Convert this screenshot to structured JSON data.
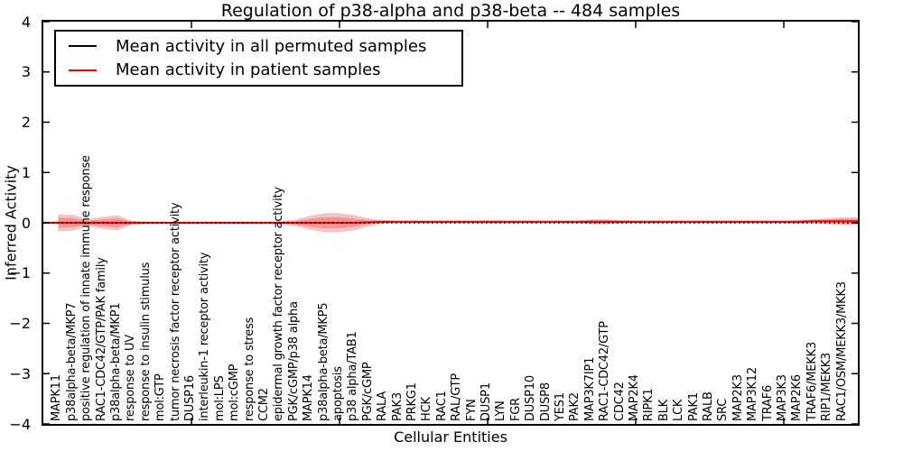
{
  "title": "Regulation of p38-alpha and p38-beta -- 484 samples",
  "axes": {
    "ylabel": "Inferred Activity",
    "xlabel": "Cellular Entities",
    "yticks": [
      "4",
      "3",
      "2",
      "1",
      "0",
      "−1",
      "−2",
      "−3",
      "−4"
    ],
    "ylim": [
      -4,
      4
    ],
    "top_axis_tick_positions": [
      10,
      20,
      30,
      40,
      50
    ]
  },
  "legend": {
    "entries": [
      {
        "label": "Mean activity in all permuted samples",
        "color": "#000000"
      },
      {
        "label": "Mean activity in patient samples",
        "color": "#ff0000"
      }
    ]
  },
  "colors": {
    "permuted_line": "#000000",
    "patient_line": "#ff0000",
    "band_fill": "#dd3a3a",
    "background": "#ffffff"
  },
  "chart_data": {
    "type": "line",
    "title": "Regulation of p38-alpha and p38-beta -- 484 samples",
    "xlabel": "Cellular Entities",
    "ylabel": "Inferred Activity",
    "ylim": [
      -4,
      4
    ],
    "grid": false,
    "legend_position": "upper left",
    "categories": [
      "MAPK11",
      "p38alpha-beta/MKP7",
      "positive regulation of innate immune response",
      "RAC1-CDC42/GTP/PAK family",
      "p38alpha-beta/MKP1",
      "response to UV",
      "response to insulin stimulus",
      "mol:GTP",
      "tumor necrosis factor receptor activity",
      "DUSP16",
      "interleukin-1 receptor activity",
      "mol:LPS",
      "mol:cGMP",
      "response to stress",
      "CCM2",
      "epidermal growth factor receptor activity",
      "PGK/cGMP/p38 alpha",
      "MAPK14",
      "p38alpha-beta/MKP5",
      "apoptosis",
      "p38 alpha/TAB1",
      "PGK/cGMP",
      "RALA",
      "PAK3",
      "PRKG1",
      "HCK",
      "RAC1",
      "RAL/GTP",
      "FYN",
      "DUSP1",
      "LYN",
      "FGR",
      "DUSP10",
      "DUSP8",
      "YES1",
      "PAK2",
      "MAP3K7IP1",
      "RAC1-CDC42/GTP",
      "CDC42",
      "MAP2K4",
      "RIPK1",
      "BLK",
      "LCK",
      "PAK1",
      "RALB",
      "SRC",
      "MAP2K3",
      "MAP3K12",
      "TRAF6",
      "MAP3K3",
      "MAP2K6",
      "TRAF6/MEKK3",
      "RIP1/MEKK3",
      "RAC1/OSM/MEKK3/MKK3"
    ],
    "series": [
      {
        "name": "Mean activity in all permuted samples",
        "color": "#000000",
        "width": 1.6,
        "dash": "1.8 3.2",
        "values": [
          0,
          0,
          0,
          0,
          0,
          0,
          0,
          0,
          0,
          0,
          0,
          0,
          0,
          0,
          0,
          0,
          0,
          0,
          0,
          0,
          0,
          0,
          0,
          0,
          0,
          0,
          0,
          0,
          0,
          0,
          0,
          0,
          0,
          0,
          0,
          0,
          0,
          0,
          0,
          0,
          0,
          0,
          0,
          0,
          0,
          0,
          0,
          0,
          0,
          0,
          0,
          0,
          0,
          0
        ]
      },
      {
        "name": "Mean activity in patient samples",
        "color": "#ff0000",
        "width": 2.2,
        "dash": "",
        "values": [
          0,
          0,
          0,
          0,
          0,
          0,
          0,
          0,
          0,
          0,
          0,
          0,
          0,
          0,
          0,
          0,
          0,
          0,
          0,
          0,
          0,
          0.01,
          0.02,
          0.02,
          0.02,
          0.02,
          0.02,
          0.02,
          0.02,
          0.02,
          0.02,
          0.02,
          0.02,
          0.02,
          0.02,
          0.02,
          0.02,
          0.02,
          0.02,
          0.02,
          0.02,
          0.02,
          0.02,
          0.02,
          0.02,
          0.02,
          0.02,
          0.02,
          0.02,
          0.02,
          0.02,
          0.03,
          0.03,
          0.03
        ]
      }
    ],
    "band_outer": {
      "name": "patient samples activity band (outer)",
      "upper": [
        0.17,
        0.16,
        0.07,
        0.12,
        0.15,
        0.04,
        0.02,
        0.02,
        0.02,
        0.02,
        0.02,
        0.02,
        0.02,
        0.02,
        0.02,
        0.03,
        0.06,
        0.14,
        0.19,
        0.19,
        0.15,
        0.09,
        0.05,
        0.04,
        0.04,
        0.04,
        0.04,
        0.04,
        0.04,
        0.05,
        0.04,
        0.04,
        0.04,
        0.04,
        0.04,
        0.04,
        0.07,
        0.07,
        0.05,
        0.04,
        0.04,
        0.04,
        0.04,
        0.04,
        0.04,
        0.04,
        0.04,
        0.04,
        0.04,
        0.04,
        0.05,
        0.07,
        0.09,
        0.11
      ],
      "lower": [
        -0.17,
        -0.16,
        -0.07,
        -0.12,
        -0.15,
        -0.04,
        -0.02,
        -0.02,
        -0.02,
        -0.02,
        -0.02,
        -0.02,
        -0.02,
        -0.02,
        -0.02,
        -0.03,
        -0.06,
        -0.14,
        -0.19,
        -0.19,
        -0.15,
        -0.07,
        -0.01,
        0,
        0,
        0,
        0,
        0,
        0,
        -0.01,
        0,
        0,
        0,
        0,
        0,
        0,
        -0.03,
        -0.03,
        -0.01,
        0,
        0,
        0,
        0,
        0,
        0,
        0,
        0,
        0,
        0,
        0,
        -0.01,
        -0.01,
        -0.03,
        -0.05
      ]
    },
    "band_inner": {
      "name": "patient samples activity band (inner)",
      "upper": [
        0.1,
        0.09,
        0.04,
        0.07,
        0.09,
        0.02,
        0.015,
        0.015,
        0.015,
        0.015,
        0.015,
        0.015,
        0.015,
        0.015,
        0.015,
        0.02,
        0.03,
        0.08,
        0.11,
        0.11,
        0.08,
        0.05,
        0.04,
        0.035,
        0.035,
        0.035,
        0.035,
        0.035,
        0.035,
        0.04,
        0.035,
        0.035,
        0.035,
        0.035,
        0.035,
        0.035,
        0.05,
        0.05,
        0.04,
        0.035,
        0.035,
        0.035,
        0.035,
        0.035,
        0.035,
        0.035,
        0.035,
        0.035,
        0.035,
        0.035,
        0.04,
        0.055,
        0.065,
        0.08
      ],
      "lower": [
        -0.1,
        -0.09,
        -0.04,
        -0.07,
        -0.09,
        -0.02,
        -0.015,
        -0.015,
        -0.015,
        -0.015,
        -0.015,
        -0.015,
        -0.015,
        -0.015,
        -0.015,
        -0.02,
        -0.03,
        -0.08,
        -0.11,
        -0.11,
        -0.08,
        -0.03,
        0,
        0.005,
        0.005,
        0.005,
        0.005,
        0.005,
        0.005,
        0,
        0.005,
        0.005,
        0.005,
        0.005,
        0.005,
        0.005,
        -0.01,
        -0.01,
        0,
        0.005,
        0.005,
        0.005,
        0.005,
        0.005,
        0.005,
        0.005,
        0.005,
        0.005,
        0.005,
        0.005,
        0,
        0.005,
        -0.005,
        -0.02
      ]
    }
  }
}
